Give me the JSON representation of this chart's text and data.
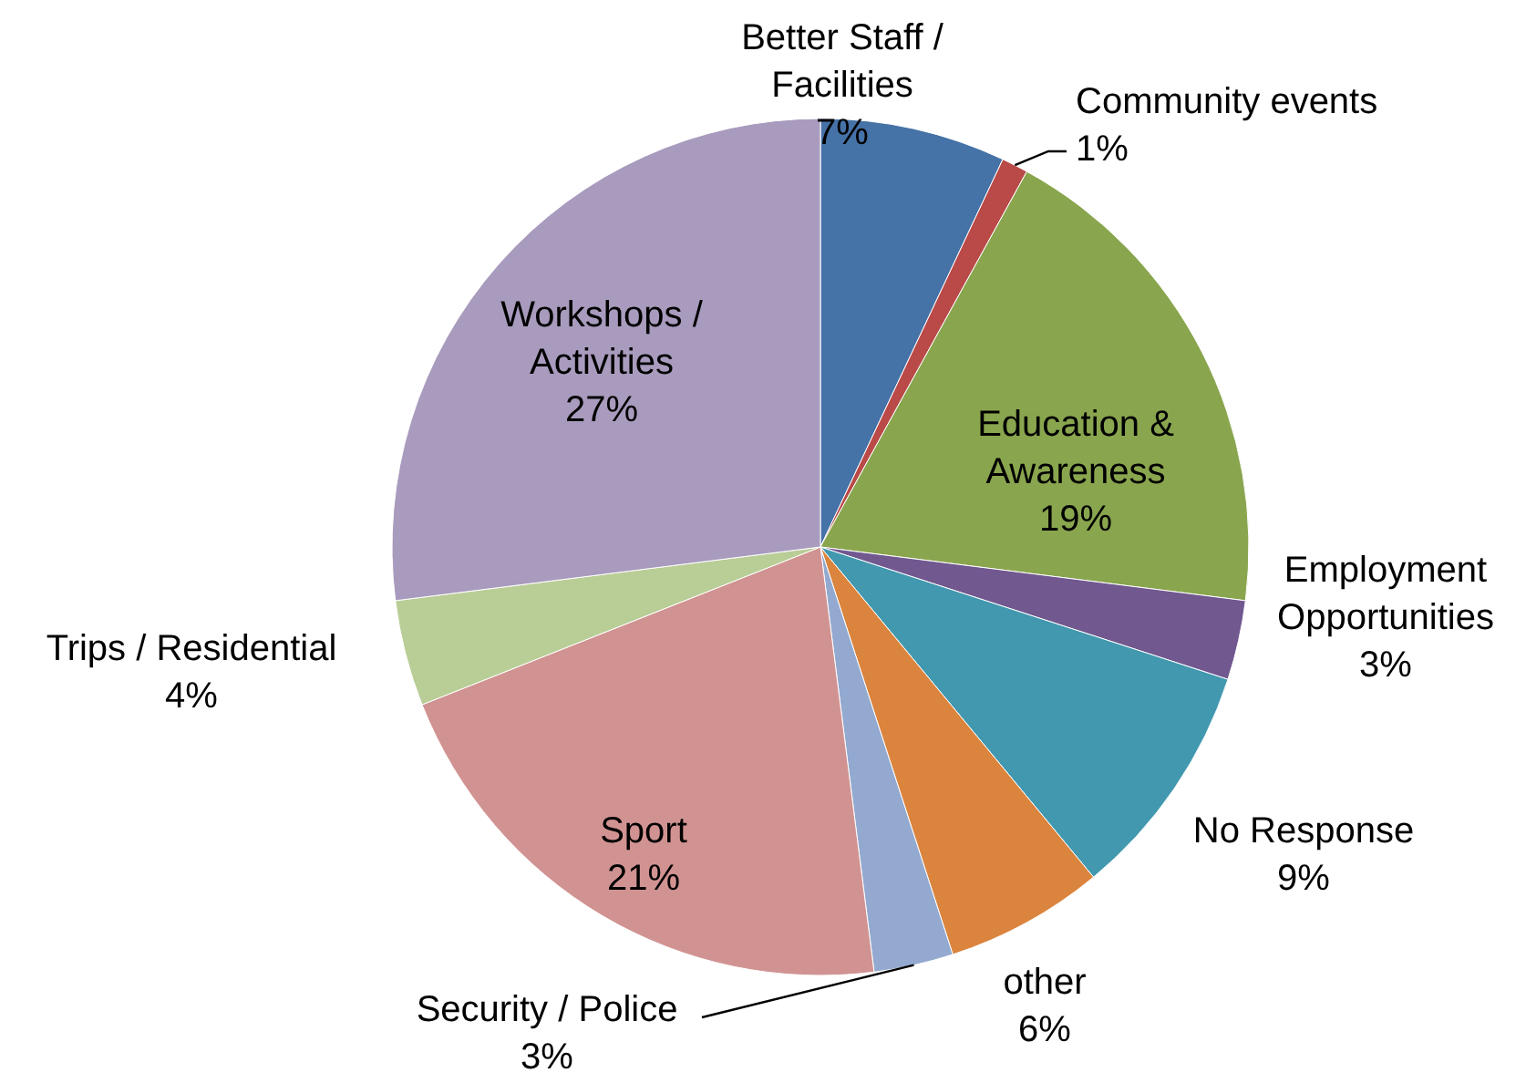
{
  "chart_data": {
    "type": "pie",
    "categories": [
      "Better Staff / Facilities",
      "Community events",
      "Education & Awareness",
      "Employment Opportunities",
      "No Response",
      "other",
      "Security / Police",
      "Sport",
      "Trips / Residential",
      "Workshops / Activities"
    ],
    "values": [
      7,
      1,
      19,
      3,
      9,
      6,
      3,
      21,
      4,
      27
    ],
    "value_labels": [
      "7%",
      "1%",
      "19%",
      "3%",
      "9%",
      "6%",
      "3%",
      "21%",
      "4%",
      "27%"
    ],
    "colors": [
      "#4572a7",
      "#b94a48",
      "#89a54e",
      "#71588f",
      "#4198af",
      "#db843d",
      "#93a9cf",
      "#d19392",
      "#b9cd96",
      "#a99bbd"
    ]
  }
}
